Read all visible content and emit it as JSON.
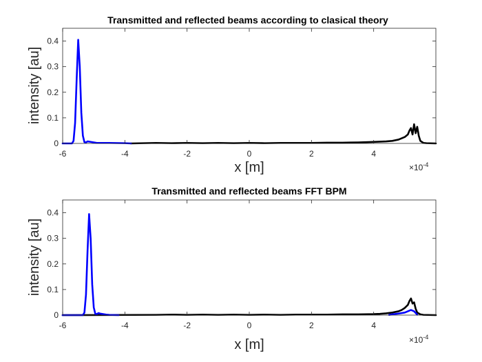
{
  "chart_data": [
    {
      "type": "line",
      "title": "Transmitted and reflected beams according to clasical theory",
      "xlabel": "x [m]",
      "ylabel": "intensity [au]",
      "xlim": [
        -0.0006,
        0.0006
      ],
      "ylim": [
        0,
        0.45
      ],
      "x_exponent_label": "×10",
      "x_exponent_value": "-4",
      "xticks": [
        -6,
        -4,
        -2,
        0,
        2,
        4
      ],
      "xtick_labels": [
        "-6",
        "-4",
        "-2",
        "0",
        "2",
        "4"
      ],
      "yticks": [
        0,
        0.1,
        0.2,
        0.3,
        0.4
      ],
      "ytick_labels": [
        "0",
        "0.1",
        "0.2",
        "0.3",
        "0.4"
      ],
      "grid": false,
      "series": [
        {
          "color": "#000000",
          "x": [
            -0.00038,
            -0.0003,
            -0.00025,
            -0.0002,
            -0.00015,
            -0.0001,
            -5e-05,
            0,
            5e-05,
            0.0001,
            0.00015,
            0.0002,
            0.00025,
            0.0003,
            0.00035,
            0.0004,
            0.00042,
            0.00044,
            0.00046,
            0.00048,
            0.00049,
            0.0005,
            0.00051,
            0.000515,
            0.00052,
            0.000525,
            0.00053,
            0.000535,
            0.00054,
            0.000545,
            0.00055,
            0.00056,
            0.00057,
            0.0006
          ],
          "y": [
            0,
            0.002,
            0.001,
            0.002,
            0.001,
            0.002,
            0.001,
            0.002,
            0.001,
            0.002,
            0.002,
            0.002,
            0.003,
            0.003,
            0.004,
            0.006,
            0.007,
            0.008,
            0.01,
            0.015,
            0.02,
            0.025,
            0.035,
            0.05,
            0.06,
            0.035,
            0.075,
            0.04,
            0.065,
            0.03,
            0.01,
            0.002,
            0.001,
            0
          ]
        },
        {
          "color": "#0000ff",
          "x": [
            -0.0006,
            -0.00057,
            -0.000565,
            -0.00056,
            -0.000555,
            -0.00055,
            -0.000545,
            -0.00054,
            -0.000535,
            -0.00053,
            -0.000525,
            -0.00052,
            -0.00051,
            -0.0005,
            -0.00049,
            -0.00045,
            -0.0004,
            -0.00038
          ],
          "y": [
            0,
            0,
            0.01,
            0.08,
            0.25,
            0.405,
            0.3,
            0.12,
            0.03,
            0.005,
            0.004,
            0.008,
            0.006,
            0.004,
            0.002,
            0.002,
            0.001,
            0
          ]
        }
      ]
    },
    {
      "type": "line",
      "title": "Transmitted and reflected beams FFT BPM",
      "xlabel": "x [m]",
      "ylabel": "intensity [au]",
      "xlim": [
        -0.0006,
        0.0006
      ],
      "ylim": [
        0,
        0.45
      ],
      "x_exponent_label": "×10",
      "x_exponent_value": "-4",
      "xticks": [
        -6,
        -4,
        -2,
        0,
        2,
        4
      ],
      "xtick_labels": [
        "-6",
        "-4",
        "-2",
        "0",
        "2",
        "4"
      ],
      "yticks": [
        0,
        0.1,
        0.2,
        0.3,
        0.4
      ],
      "ytick_labels": [
        "0",
        "0.1",
        "0.2",
        "0.3",
        "0.4"
      ],
      "grid": false,
      "series": [
        {
          "color": "#000000",
          "x": [
            -0.0006,
            -0.0003,
            -0.00025,
            -0.0002,
            -0.00015,
            -0.0001,
            -5e-05,
            0,
            5e-05,
            0.0001,
            0.00015,
            0.0002,
            0.00025,
            0.0003,
            0.00035,
            0.0004,
            0.00042,
            0.00044,
            0.00046,
            0.00048,
            0.00049,
            0.0005,
            0.00051,
            0.000515,
            0.00052,
            0.000525,
            0.00053,
            0.000535,
            0.00054,
            0.00055,
            0.00056,
            0.0006
          ],
          "y": [
            0,
            0.001,
            0.002,
            0.001,
            0.002,
            0.001,
            0.002,
            0.001,
            0.002,
            0.001,
            0.002,
            0.002,
            0.002,
            0.003,
            0.003,
            0.004,
            0.005,
            0.007,
            0.01,
            0.015,
            0.02,
            0.028,
            0.04,
            0.055,
            0.065,
            0.045,
            0.05,
            0.025,
            0.01,
            0.003,
            0.001,
            0
          ]
        },
        {
          "color": "#0000ff",
          "x": [
            -0.0006,
            -0.000535,
            -0.00053,
            -0.000525,
            -0.00052,
            -0.000515,
            -0.00051,
            -0.000505,
            -0.0005,
            -0.000495,
            -0.00049,
            -0.000485,
            -0.00048,
            -0.00047,
            -0.00046,
            -0.00045,
            -0.00042
          ],
          "y": [
            0,
            0,
            0.01,
            0.08,
            0.25,
            0.395,
            0.3,
            0.12,
            0.03,
            0.005,
            0.004,
            0.008,
            0.006,
            0.004,
            0.002,
            0.001,
            0
          ]
        },
        {
          "color": "#0000ff",
          "x": [
            0.00045,
            0.00046,
            0.00048,
            0.0005,
            0.00051,
            0.00052,
            0.00053,
            0.00054
          ],
          "y": [
            0.001,
            0.003,
            0.006,
            0.01,
            0.015,
            0.02,
            0.015,
            0.002
          ]
        }
      ]
    }
  ]
}
